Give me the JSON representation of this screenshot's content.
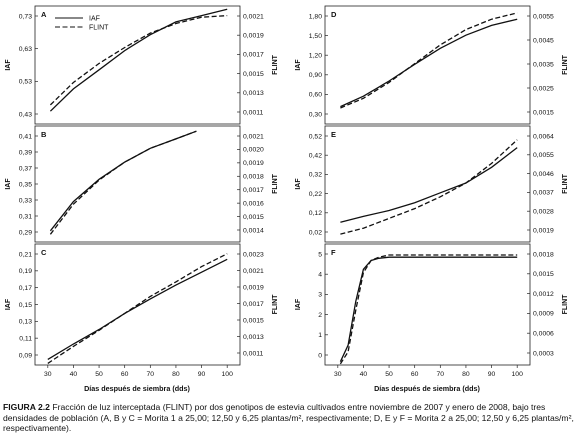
{
  "panels": [
    {
      "label": "A",
      "ylabel": "IAF",
      "y2label": "FLINT",
      "y_ticks": [
        "0,43",
        "0,53",
        "0,63",
        "0,73"
      ],
      "y2_ticks": [
        "0,0011",
        "0,0013",
        "0,0015",
        "0,0017",
        "0,0019",
        "0,0021"
      ],
      "show_xaxis": false,
      "legend": [
        {
          "name": "IAF",
          "style": "solid"
        },
        {
          "name": "FLINT",
          "style": "dashed"
        }
      ]
    },
    {
      "label": "B",
      "ylabel": "IAF",
      "y2label": "FLINT",
      "y_ticks": [
        "0,29",
        "0,31",
        "0,33",
        "0,35",
        "0,37",
        "0,39",
        "0,41"
      ],
      "y2_ticks": [
        "0,0014",
        "0,0015",
        "0,0016",
        "0,0017",
        "0,0018",
        "0,0019",
        "0,0020",
        "0,0021"
      ],
      "show_xaxis": false
    },
    {
      "label": "C",
      "ylabel": "IAF",
      "y2label": "FLINT",
      "y_ticks": [
        "0,09",
        "0,11",
        "0,13",
        "0,15",
        "0,17",
        "0,19",
        "0,21"
      ],
      "y2_ticks": [
        "0,0011",
        "0,0013",
        "0,0015",
        "0,0017",
        "0,0019",
        "0,0021",
        "0,0023"
      ],
      "show_xaxis": true,
      "x_ticks": [
        "30",
        "40",
        "50",
        "60",
        "70",
        "80",
        "90",
        "100"
      ]
    },
    {
      "label": "D",
      "ylabel": "IAF",
      "y2label": "FLINT",
      "y_ticks": [
        "0,30",
        "0,60",
        "0,90",
        "1,20",
        "1,50",
        "1,80"
      ],
      "y2_ticks": [
        "0,0015",
        "0,0025",
        "0,0035",
        "0,0045",
        "0,0055"
      ],
      "show_xaxis": false
    },
    {
      "label": "E",
      "ylabel": "IAF",
      "y2label": "FLINT",
      "y_ticks": [
        "0,02",
        "0,12",
        "0,22",
        "0,32",
        "0,42",
        "0,52"
      ],
      "y2_ticks": [
        "0,0019",
        "0,0028",
        "0,0037",
        "0,0046",
        "0,0055",
        "0,0064"
      ],
      "show_xaxis": false
    },
    {
      "label": "F",
      "ylabel": "IAF",
      "y2label": "FLINT",
      "y_ticks": [
        "0",
        "1",
        "2",
        "3",
        "4",
        "5"
      ],
      "y2_ticks": [
        "0,0003",
        "0,0006",
        "0,0009",
        "0,0012",
        "0,0015",
        "0,0018"
      ],
      "show_xaxis": true,
      "x_ticks": [
        "30",
        "40",
        "50",
        "60",
        "70",
        "80",
        "90",
        "100"
      ]
    }
  ],
  "xaxis_title": "Días después de siembra (dds)",
  "caption": {
    "label": "FIGURA 2.2",
    "text": " Fracción de luz interceptada (FLINT) por dos genotipos de estevia cultivados entre noviembre de 2007 y enero de 2008, bajo tres densidades de población (A, B y C = Morita 1 a 25,00; 12,50 y 6,25 plantas/m², respectivamente; D, E y F = Morita 2 a 25,00; 12,50 y 6,25 plantas/m², respectivamente)."
  },
  "chart_data": [
    {
      "type": "line",
      "panel": "A",
      "x": [
        31,
        40,
        50,
        60,
        70,
        80,
        90,
        100
      ],
      "xlim": [
        25,
        105
      ],
      "ylim": [
        0.38,
        0.75
      ],
      "ylabel": "IAF",
      "y2label": "FLINT",
      "series": [
        {
          "name": "IAF",
          "style": "solid",
          "values": [
            0.42,
            0.49,
            0.55,
            0.61,
            0.66,
            0.7,
            0.72,
            0.74
          ]
        },
        {
          "name": "FLINT",
          "style": "dashed",
          "values": [
            0.44,
            0.51,
            0.57,
            0.62,
            0.665,
            0.695,
            0.715,
            0.72
          ]
        }
      ]
    },
    {
      "type": "line",
      "panel": "B",
      "x": [
        31,
        40,
        50,
        60,
        70,
        80,
        88
      ],
      "xlim": [
        25,
        105
      ],
      "ylim": [
        0.28,
        0.415
      ],
      "ylabel": "IAF",
      "y2label": "FLINT",
      "series": [
        {
          "name": "IAF",
          "style": "solid",
          "values": [
            0.293,
            0.327,
            0.353,
            0.373,
            0.389,
            0.4,
            0.409
          ]
        },
        {
          "name": "FLINT",
          "style": "dashed",
          "values": [
            0.289,
            0.324,
            0.352,
            0.373,
            0.389,
            0.4,
            0.409
          ]
        }
      ]
    },
    {
      "type": "line",
      "panel": "C",
      "x": [
        30,
        40,
        50,
        60,
        70,
        80,
        90,
        100
      ],
      "xlim": [
        25,
        105
      ],
      "ylim": [
        0.075,
        0.225
      ],
      "ylabel": "IAF",
      "y2label": "FLINT",
      "series": [
        {
          "name": "IAF",
          "style": "solid",
          "values": [
            0.082,
            0.101,
            0.119,
            0.139,
            0.157,
            0.174,
            0.19,
            0.206
          ]
        },
        {
          "name": "FLINT",
          "style": "dashed",
          "values": [
            0.077,
            0.098,
            0.118,
            0.139,
            0.16,
            0.178,
            0.197,
            0.213
          ]
        }
      ]
    },
    {
      "type": "line",
      "panel": "D",
      "x": [
        31,
        40,
        50,
        60,
        70,
        80,
        90,
        100
      ],
      "xlim": [
        25,
        105
      ],
      "ylim": [
        0.1,
        1.8
      ],
      "ylabel": "IAF",
      "y2label": "FLINT",
      "series": [
        {
          "name": "IAF",
          "style": "solid",
          "values": [
            0.35,
            0.5,
            0.72,
            0.96,
            1.19,
            1.38,
            1.52,
            1.61
          ]
        },
        {
          "name": "FLINT",
          "style": "dashed",
          "values": [
            0.33,
            0.47,
            0.7,
            0.97,
            1.24,
            1.46,
            1.61,
            1.7
          ]
        }
      ]
    },
    {
      "type": "line",
      "panel": "E",
      "x": [
        31,
        40,
        50,
        60,
        70,
        80,
        90,
        100
      ],
      "xlim": [
        25,
        105
      ],
      "ylim": [
        0.0,
        0.59
      ],
      "ylabel": "IAF",
      "y2label": "FLINT",
      "series": [
        {
          "name": "IAF",
          "style": "solid",
          "values": [
            0.1,
            0.13,
            0.16,
            0.2,
            0.25,
            0.3,
            0.38,
            0.48
          ]
        },
        {
          "name": "FLINT",
          "style": "dashed",
          "values": [
            0.04,
            0.07,
            0.12,
            0.17,
            0.23,
            0.3,
            0.4,
            0.52
          ]
        }
      ]
    },
    {
      "type": "line",
      "panel": "F",
      "x": [
        31,
        34,
        37,
        40,
        43,
        46,
        50,
        55,
        60,
        70,
        80,
        90,
        100
      ],
      "xlim": [
        25,
        105
      ],
      "ylim": [
        0,
        5.5
      ],
      "ylabel": "IAF",
      "y2label": "FLINT",
      "series": [
        {
          "name": "IAF",
          "style": "solid",
          "values": [
            0.15,
            0.9,
            2.9,
            4.35,
            4.75,
            4.85,
            4.9,
            4.9,
            4.9,
            4.9,
            4.9,
            4.9,
            4.9
          ]
        },
        {
          "name": "FLINT",
          "style": "dashed",
          "values": [
            0.05,
            0.6,
            2.5,
            4.2,
            4.75,
            4.9,
            5.0,
            5.0,
            5.0,
            5.0,
            5.0,
            5.0,
            5.0
          ]
        }
      ]
    }
  ]
}
